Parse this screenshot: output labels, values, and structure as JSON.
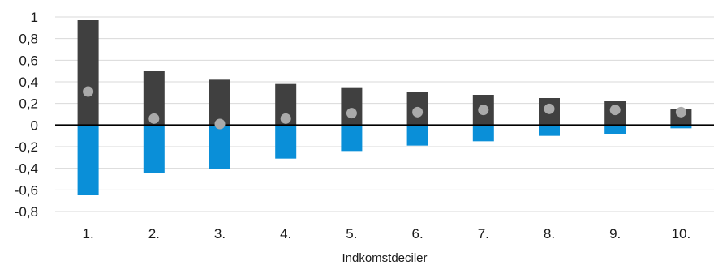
{
  "chart_data": {
    "type": "bar",
    "title": "",
    "xlabel": "Indkomstdeciler",
    "ylabel": "",
    "ylim": [
      -0.8,
      1.0
    ],
    "yticks": [
      -0.8,
      -0.6,
      -0.4,
      -0.2,
      0,
      0.2,
      0.4,
      0.6,
      0.8,
      1
    ],
    "ytick_labels": [
      "-0,8",
      "-0,6",
      "-0,4",
      "-0,2",
      "0",
      "0,2",
      "0,4",
      "0,6",
      "0,8",
      "1"
    ],
    "categories": [
      "1.",
      "2.",
      "3.",
      "4.",
      "5.",
      "6.",
      "7.",
      "8.",
      "9.",
      "10."
    ],
    "grid": "horizontal",
    "legend": "none",
    "series": [
      {
        "type": "bar",
        "color": "#404040",
        "values": [
          0.97,
          0.5,
          0.42,
          0.38,
          0.35,
          0.31,
          0.28,
          0.25,
          0.22,
          0.15
        ]
      },
      {
        "type": "bar",
        "color": "#0a8fd8",
        "values": [
          -0.65,
          -0.44,
          -0.41,
          -0.31,
          -0.24,
          -0.19,
          -0.15,
          -0.1,
          -0.08,
          -0.03
        ]
      },
      {
        "type": "scatter",
        "color": "#aaaaaa",
        "values": [
          0.31,
          0.06,
          0.01,
          0.06,
          0.11,
          0.12,
          0.14,
          0.15,
          0.14,
          0.12
        ]
      }
    ]
  }
}
